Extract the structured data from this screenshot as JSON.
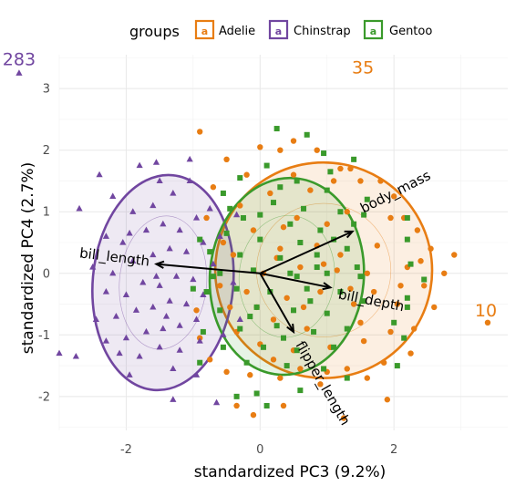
{
  "chart_data": {
    "type": "scatter",
    "title": "",
    "xlabel": "standardized PC3 (9.2%)",
    "ylabel": "standardized PC4 (2.7%)",
    "xlim": [
      -3.0,
      3.7
    ],
    "ylim": [
      -2.55,
      3.55
    ],
    "x_ticks": [
      -2,
      0,
      2
    ],
    "y_ticks": [
      -2,
      -1,
      0,
      1,
      2,
      3
    ],
    "x_tick_labels": [
      "-2",
      "0",
      "2"
    ],
    "y_tick_labels": [
      "-2",
      "-1",
      "0",
      "1",
      "2",
      "3"
    ],
    "grid": true,
    "legend": {
      "title": "groups",
      "position": "top",
      "entries": [
        "Adelie",
        "Chinstrap",
        "Gentoo"
      ]
    },
    "colors": {
      "Adelie": "#E87D13",
      "Chinstrap": "#7146A0",
      "Gentoo": "#3A9A2B"
    },
    "series": [
      {
        "name": "Adelie",
        "marker": "circle",
        "points": [
          [
            -0.9,
            2.3
          ],
          [
            -0.5,
            1.85
          ],
          [
            0.0,
            2.05
          ],
          [
            0.3,
            2.0
          ],
          [
            0.5,
            2.15
          ],
          [
            0.85,
            2.0
          ],
          [
            1.2,
            1.7
          ],
          [
            1.5,
            1.5
          ],
          [
            1.35,
            1.7
          ],
          [
            1.8,
            1.5
          ],
          [
            2.0,
            1.25
          ],
          [
            2.15,
            0.9
          ],
          [
            2.35,
            0.7
          ],
          [
            2.55,
            0.4
          ],
          [
            2.75,
            0.0
          ],
          [
            2.2,
            0.1
          ],
          [
            2.45,
            -0.2
          ],
          [
            2.05,
            -0.5
          ],
          [
            2.6,
            -0.55
          ],
          [
            2.3,
            -0.9
          ],
          [
            1.95,
            -0.95
          ],
          [
            2.25,
            -1.3
          ],
          [
            1.85,
            -1.45
          ],
          [
            1.6,
            -1.7
          ],
          [
            1.3,
            -1.55
          ],
          [
            0.9,
            -1.8
          ],
          [
            0.6,
            -1.55
          ],
          [
            0.3,
            -1.7
          ],
          [
            -0.15,
            -1.65
          ],
          [
            -0.5,
            -1.6
          ],
          [
            -0.75,
            -1.4
          ],
          [
            -0.9,
            -1.05
          ],
          [
            -0.35,
            -2.15
          ],
          [
            -0.1,
            -2.3
          ],
          [
            0.35,
            -2.15
          ],
          [
            1.9,
            -2.05
          ],
          [
            1.25,
            -2.35
          ],
          [
            0.55,
            0.9
          ],
          [
            0.3,
            0.4
          ],
          [
            0.6,
            0.1
          ],
          [
            0.9,
            -0.3
          ],
          [
            1.2,
            0.3
          ],
          [
            1.0,
            0.8
          ],
          [
            0.4,
            -0.4
          ],
          [
            -0.1,
            0.7
          ],
          [
            -0.4,
            0.3
          ],
          [
            -0.2,
            -0.3
          ],
          [
            0.2,
            -0.75
          ],
          [
            0.7,
            -0.9
          ],
          [
            1.05,
            -1.2
          ],
          [
            1.4,
            -0.5
          ],
          [
            1.6,
            0.0
          ],
          [
            1.3,
            1.0
          ],
          [
            0.75,
            1.35
          ],
          [
            0.15,
            1.3
          ],
          [
            -0.3,
            1.1
          ],
          [
            -0.55,
            0.5
          ],
          [
            -0.6,
            -0.2
          ],
          [
            -0.35,
            -0.95
          ],
          [
            0.0,
            -1.15
          ],
          [
            0.5,
            -1.25
          ],
          [
            1.55,
            -1.1
          ],
          [
            1.75,
            0.45
          ],
          [
            1.95,
            0.9
          ],
          [
            0.05,
            0.0
          ],
          [
            0.85,
            0.45
          ],
          [
            -0.2,
            1.6
          ],
          [
            0.5,
            1.6
          ],
          [
            1.1,
            1.5
          ],
          [
            1.5,
            -0.8
          ],
          [
            0.2,
            -1.4
          ],
          [
            -0.8,
            0.9
          ],
          [
            -0.95,
            -0.6
          ],
          [
            1.0,
            -1.6
          ],
          [
            2.4,
            0.2
          ],
          [
            2.1,
            -0.2
          ],
          [
            2.9,
            0.3
          ],
          [
            0.35,
            0.75
          ],
          [
            0.65,
            -0.55
          ],
          [
            1.15,
            0.05
          ],
          [
            -0.45,
            -0.55
          ],
          [
            -0.05,
            -0.55
          ],
          [
            0.25,
            0.25
          ],
          [
            0.95,
            0.15
          ],
          [
            1.7,
            -0.3
          ],
          [
            -0.7,
            1.4
          ],
          [
            1.35,
            -0.25
          ],
          [
            3.4,
            -0.8
          ]
        ]
      },
      {
        "name": "Chinstrap",
        "marker": "triangle",
        "points": [
          [
            -3.6,
            3.25
          ],
          [
            -1.8,
            1.75
          ],
          [
            -1.55,
            1.8
          ],
          [
            -2.4,
            1.6
          ],
          [
            -1.5,
            1.5
          ],
          [
            -2.7,
            1.05
          ],
          [
            -2.2,
            1.25
          ],
          [
            -1.9,
            1.0
          ],
          [
            -1.6,
            1.1
          ],
          [
            -1.3,
            1.3
          ],
          [
            -1.05,
            1.5
          ],
          [
            -2.3,
            0.6
          ],
          [
            -2.05,
            0.5
          ],
          [
            -1.7,
            0.7
          ],
          [
            -1.45,
            0.8
          ],
          [
            -1.2,
            0.7
          ],
          [
            -0.95,
            0.9
          ],
          [
            -2.5,
            0.1
          ],
          [
            -2.2,
            0.0
          ],
          [
            -1.9,
            0.2
          ],
          [
            -1.6,
            0.3
          ],
          [
            -1.35,
            0.4
          ],
          [
            -1.1,
            0.35
          ],
          [
            -0.85,
            0.5
          ],
          [
            -2.3,
            -0.3
          ],
          [
            -2.0,
            -0.35
          ],
          [
            -1.75,
            -0.15
          ],
          [
            -1.5,
            -0.2
          ],
          [
            -1.25,
            -0.05
          ],
          [
            -1.0,
            -0.1
          ],
          [
            -0.7,
            0.15
          ],
          [
            -2.45,
            -0.75
          ],
          [
            -2.15,
            -0.7
          ],
          [
            -1.85,
            -0.6
          ],
          [
            -1.6,
            -0.55
          ],
          [
            -1.35,
            -0.45
          ],
          [
            -1.1,
            -0.5
          ],
          [
            -0.85,
            -0.35
          ],
          [
            -2.3,
            -1.1
          ],
          [
            -2.0,
            -1.05
          ],
          [
            -1.7,
            -0.95
          ],
          [
            -1.45,
            -0.9
          ],
          [
            -1.2,
            -0.85
          ],
          [
            -0.95,
            -0.75
          ],
          [
            -2.1,
            -1.3
          ],
          [
            -1.8,
            -1.35
          ],
          [
            -1.5,
            -1.2
          ],
          [
            -1.2,
            -1.25
          ],
          [
            -0.9,
            -1.1
          ],
          [
            -3.0,
            -1.3
          ],
          [
            -2.75,
            -1.35
          ],
          [
            -1.95,
            -1.65
          ],
          [
            -1.3,
            -1.55
          ],
          [
            -0.95,
            -1.65
          ],
          [
            -1.3,
            -2.05
          ],
          [
            -0.65,
            -2.1
          ],
          [
            -0.55,
            -1.0
          ],
          [
            -0.6,
            0.6
          ],
          [
            -0.4,
            -0.15
          ],
          [
            -1.05,
            1.85
          ],
          [
            -0.75,
            1.05
          ],
          [
            -0.35,
            0.95
          ],
          [
            -0.3,
            -0.75
          ],
          [
            -1.55,
            -0.05
          ],
          [
            -1.95,
            0.65
          ],
          [
            -1.4,
            -0.7
          ]
        ]
      },
      {
        "name": "Gentoo",
        "marker": "square",
        "points": [
          [
            0.25,
            2.35
          ],
          [
            0.7,
            2.25
          ],
          [
            0.95,
            1.95
          ],
          [
            1.4,
            1.85
          ],
          [
            0.1,
            1.75
          ],
          [
            -0.3,
            1.55
          ],
          [
            0.55,
            1.5
          ],
          [
            1.0,
            1.35
          ],
          [
            -0.55,
            1.3
          ],
          [
            0.2,
            1.15
          ],
          [
            0.65,
            1.05
          ],
          [
            1.2,
            1.0
          ],
          [
            -0.25,
            0.9
          ],
          [
            0.45,
            0.8
          ],
          [
            0.9,
            0.7
          ],
          [
            1.4,
            0.8
          ],
          [
            -0.5,
            0.65
          ],
          [
            0.0,
            0.55
          ],
          [
            0.6,
            0.5
          ],
          [
            1.1,
            0.55
          ],
          [
            -0.75,
            0.35
          ],
          [
            -0.3,
            0.3
          ],
          [
            0.3,
            0.25
          ],
          [
            0.85,
            0.3
          ],
          [
            1.3,
            0.4
          ],
          [
            -0.6,
            0.0
          ],
          [
            -0.1,
            0.05
          ],
          [
            0.45,
            0.0
          ],
          [
            1.0,
            0.0
          ],
          [
            1.45,
            0.1
          ],
          [
            -0.8,
            -0.3
          ],
          [
            -0.35,
            -0.25
          ],
          [
            0.15,
            -0.3
          ],
          [
            0.7,
            -0.25
          ],
          [
            1.2,
            -0.3
          ],
          [
            -0.6,
            -0.6
          ],
          [
            -0.05,
            -0.55
          ],
          [
            0.5,
            -0.6
          ],
          [
            1.0,
            -0.65
          ],
          [
            -0.85,
            -0.95
          ],
          [
            -0.3,
            -0.9
          ],
          [
            0.25,
            -0.85
          ],
          [
            0.8,
            -0.95
          ],
          [
            1.3,
            -0.9
          ],
          [
            -0.55,
            -1.2
          ],
          [
            0.05,
            -1.2
          ],
          [
            0.55,
            -1.25
          ],
          [
            1.1,
            -1.2
          ],
          [
            -0.9,
            -1.45
          ],
          [
            -0.2,
            -1.45
          ],
          [
            0.4,
            -1.5
          ],
          [
            0.95,
            -1.55
          ],
          [
            1.3,
            -1.7
          ],
          [
            0.6,
            -1.9
          ],
          [
            -0.05,
            -1.95
          ],
          [
            -0.35,
            -2.0
          ],
          [
            0.1,
            -2.15
          ],
          [
            2.2,
            0.55
          ],
          [
            2.25,
            0.15
          ],
          [
            2.45,
            -0.1
          ],
          [
            2.2,
            -0.55
          ],
          [
            2.0,
            -0.8
          ],
          [
            1.55,
            0.95
          ],
          [
            -0.9,
            0.55
          ],
          [
            -1.0,
            -0.25
          ],
          [
            0.35,
            -1.05
          ],
          [
            0.85,
            0.1
          ],
          [
            1.55,
            -0.45
          ],
          [
            -0.45,
            1.05
          ],
          [
            0.0,
            0.95
          ],
          [
            0.3,
            1.4
          ],
          [
            0.75,
            -0.45
          ],
          [
            -0.15,
            -0.7
          ],
          [
            1.05,
            1.65
          ],
          [
            2.15,
            -1.05
          ],
          [
            2.05,
            -1.5
          ],
          [
            2.2,
            0.9
          ],
          [
            2.2,
            -0.4
          ],
          [
            -0.7,
            -0.05
          ],
          [
            1.6,
            1.2
          ],
          [
            0.55,
            -0.05
          ],
          [
            1.5,
            -0.05
          ]
        ]
      }
    ],
    "ellipses": [
      {
        "group": "Adelie",
        "center": [
          0.95,
          0.05
        ],
        "semi_axes": [
          1.75,
          1.62
        ],
        "angle": 100
      },
      {
        "group": "Chinstrap",
        "center": [
          -1.45,
          -0.15
        ],
        "semi_axes": [
          1.75,
          1.05
        ],
        "angle": 95
      },
      {
        "group": "Gentoo",
        "center": [
          0.4,
          -0.05
        ],
        "semi_axes": [
          1.6,
          1.15
        ],
        "angle": 95
      }
    ],
    "variables": [
      {
        "name": "body_mass",
        "x": 1.38,
        "y": 0.68
      },
      {
        "name": "bill_depth",
        "x": 1.05,
        "y": -0.23
      },
      {
        "name": "flipper_length",
        "x": 0.5,
        "y": -0.95
      },
      {
        "name": "bill_length",
        "x": -1.55,
        "y": 0.15
      }
    ],
    "outlier_labels": [
      {
        "text": "283",
        "group": "Chinstrap",
        "x": -3.6,
        "y": 3.25
      },
      {
        "text": "35",
        "group": "Adelie",
        "x": 1.55,
        "y": 3.2
      },
      {
        "text": "10",
        "group": "Adelie",
        "x": 3.4,
        "y": -0.8
      }
    ]
  }
}
